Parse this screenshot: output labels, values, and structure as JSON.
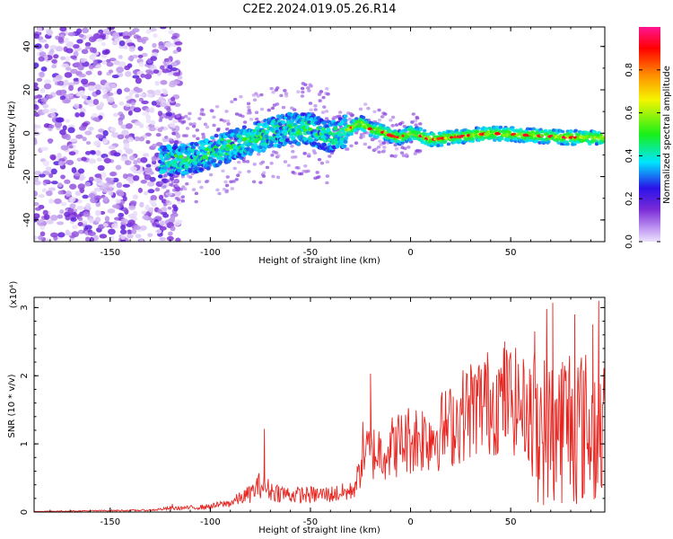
{
  "page": {
    "title": "C2E2.2024.019.05.26.R14"
  },
  "colors": {
    "snr_line": "#e8241f",
    "colorbar": [
      "#ece2fb",
      "#7a2bd6",
      "#2a12e8",
      "#00e6ff",
      "#18f018",
      "#f5f500",
      "#ff8a00",
      "#ff0000",
      "#ff1493"
    ]
  },
  "chart_data": [
    {
      "id": "spectrogram",
      "type": "heatmap",
      "title": "C2E2.2024.019.05.26.R14",
      "xlabel": "Height of straight line (km)",
      "ylabel": "Frequency (Hz)",
      "xlim": [
        -188,
        97
      ],
      "ylim": [
        -50,
        49
      ],
      "xticks": [
        -150,
        -100,
        -50,
        0,
        50
      ],
      "yticks": [
        -40,
        -20,
        0,
        20,
        40
      ],
      "colorbar": {
        "label": "Normalized spectral amplitude",
        "range": [
          0,
          1
        ],
        "ticks": [
          0.0,
          0.2,
          0.4,
          0.6,
          0.8
        ]
      },
      "ridge": {
        "x": [
          -125,
          -110,
          -100,
          -90,
          -80,
          -70,
          -60,
          -50,
          -40,
          -35,
          -30,
          -25,
          -20,
          -15,
          -10,
          -5,
          0,
          5,
          10,
          20,
          40,
          60,
          80,
          95
        ],
        "freq": [
          -13,
          -12,
          -9,
          -6,
          -3,
          0,
          2,
          2,
          -2,
          0,
          2,
          5,
          2,
          1,
          -1,
          -2,
          0,
          -1,
          -3,
          -2,
          0,
          -1,
          -2,
          -2
        ]
      },
      "noise_region_x": [
        -188,
        -125
      ]
    },
    {
      "id": "snr",
      "type": "line",
      "xlabel": "Height of straight line (km)",
      "ylabel": "SNR (10 * v/v)",
      "y_multiplier": "(x10⁴)",
      "xlim": [
        -188,
        97
      ],
      "ylim": [
        0,
        3.15
      ],
      "xticks": [
        -150,
        -100,
        -50,
        0,
        50
      ],
      "yticks": [
        0,
        1,
        2,
        3
      ],
      "envelope": {
        "x": [
          -188,
          -130,
          -120,
          -110,
          -100,
          -90,
          -80,
          -75,
          -70,
          -60,
          -50,
          -40,
          -30,
          -26,
          -24,
          -20,
          -10,
          0,
          10,
          20,
          30,
          40,
          50,
          60,
          70,
          80,
          90,
          97
        ],
        "y": [
          0.01,
          0.03,
          0.06,
          0.07,
          0.09,
          0.15,
          0.3,
          0.45,
          0.35,
          0.28,
          0.28,
          0.29,
          0.33,
          0.55,
          1.0,
          0.95,
          1.05,
          1.2,
          1.25,
          1.4,
          1.7,
          1.8,
          1.85,
          1.6,
          1.5,
          1.7,
          1.5,
          1.4
        ]
      },
      "peaks": {
        "x": [
          -119,
          -73,
          -20,
          -9,
          -1,
          26,
          37,
          47,
          62,
          68,
          71,
          82,
          91,
          94
        ],
        "y": [
          0.12,
          1.22,
          2.03,
          1.15,
          1.5,
          1.9,
          2.2,
          2.5,
          2.65,
          2.98,
          3.07,
          2.9,
          2.75,
          3.1
        ]
      }
    }
  ]
}
